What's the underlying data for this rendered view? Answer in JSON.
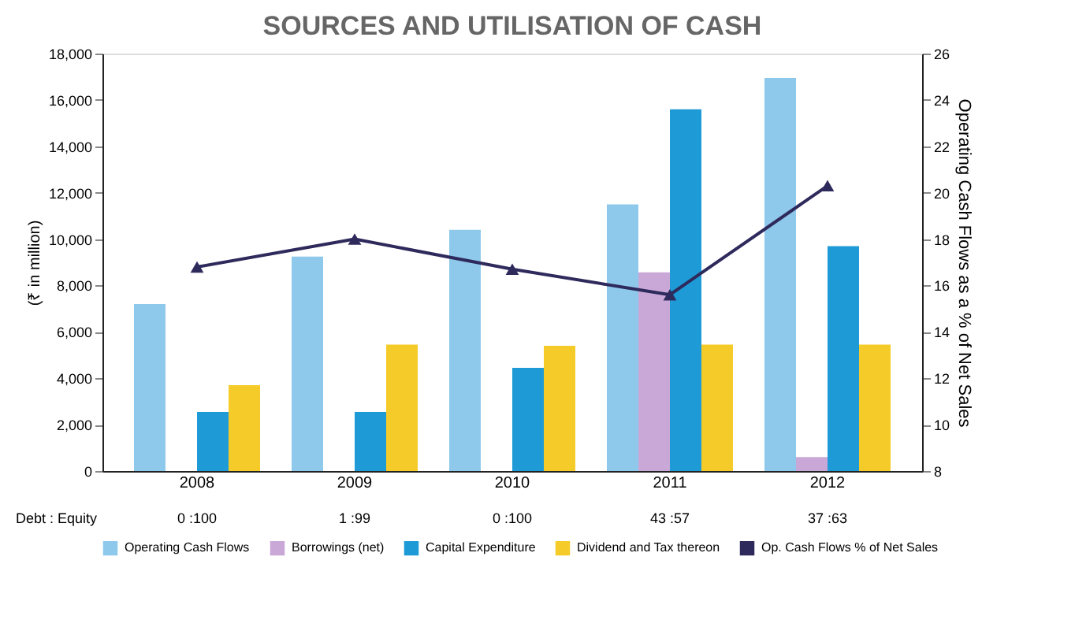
{
  "chart_data": {
    "type": "bar",
    "title": "SOURCES AND UTILISATION OF CASH",
    "ylabel": "(₹ in million)",
    "y2label": "Operating Cash Flows as a % of Net Sales",
    "categories": [
      "2008",
      "2009",
      "2010",
      "2011",
      "2012"
    ],
    "series": [
      {
        "name": "Operating Cash Flows",
        "color": "#8ec9ec",
        "values": [
          7200,
          9250,
          10400,
          11500,
          16950
        ]
      },
      {
        "name": "Borrowings (net)",
        "color": "#c9a8d8",
        "values": [
          0,
          0,
          0,
          8570,
          600
        ]
      },
      {
        "name": "Capital Expenditure",
        "color": "#1e9bd7",
        "values": [
          2550,
          2550,
          4450,
          15600,
          9700
        ]
      },
      {
        "name": "Dividend and Tax thereon",
        "color": "#f5cb2a",
        "values": [
          3700,
          5450,
          5400,
          5450,
          5450
        ]
      },
      {
        "name": "Op. Cash Flows % of Net Sales",
        "color": "#2e2a5c",
        "type": "line",
        "axis": "y2",
        "marker": "triangle",
        "values": [
          16.8,
          18.0,
          16.7,
          15.6,
          20.3
        ]
      }
    ],
    "ylim": [
      0,
      18000
    ],
    "yticks": [
      {
        "value": 0,
        "label": "0"
      },
      {
        "value": 2000,
        "label": "2,000"
      },
      {
        "value": 4000,
        "label": "4,000"
      },
      {
        "value": 6000,
        "label": "6,000"
      },
      {
        "value": 8000,
        "label": "8,000"
      },
      {
        "value": 10000,
        "label": "10,000"
      },
      {
        "value": 12000,
        "label": "12,000"
      },
      {
        "value": 14000,
        "label": "14,000"
      },
      {
        "value": 16000,
        "label": "16,000"
      },
      {
        "value": 18000,
        "label": "18,000"
      }
    ],
    "y2lim": [
      8,
      26
    ],
    "y2ticks": [
      8,
      10,
      12,
      14,
      16,
      18,
      20,
      22,
      24,
      26
    ],
    "annotations": [
      "Debt : Equity",
      "0 :100",
      "1 :99",
      "0 :100",
      "43 :57",
      "37 :63"
    ],
    "grid": false,
    "legend": "bottom"
  }
}
